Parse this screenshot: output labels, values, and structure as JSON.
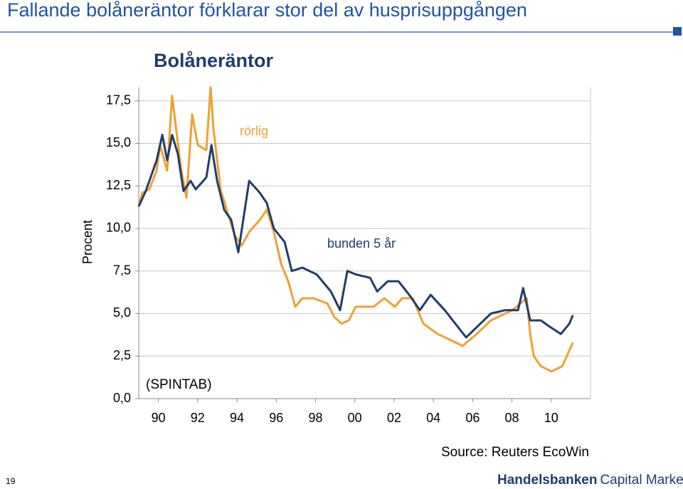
{
  "header": {
    "title": "Fallande bolåneräntor förklarar stor del av husprisuppgången"
  },
  "chart_data": {
    "type": "line",
    "title": "Bolåneräntor",
    "y_label": "Procent",
    "annotations": [
      "(SPINTAB)"
    ],
    "xlim": [
      1989,
      2012
    ],
    "xticks": [
      {
        "value": 1990,
        "label": "90"
      },
      {
        "value": 1992,
        "label": "92"
      },
      {
        "value": 1994,
        "label": "94"
      },
      {
        "value": 1996,
        "label": "96"
      },
      {
        "value": 1998,
        "label": "98"
      },
      {
        "value": 2000,
        "label": "00"
      },
      {
        "value": 2002,
        "label": "02"
      },
      {
        "value": 2004,
        "label": "04"
      },
      {
        "value": 2006,
        "label": "06"
      },
      {
        "value": 2008,
        "label": "08"
      },
      {
        "value": 2010,
        "label": "10"
      }
    ],
    "ylim": [
      0,
      18.3
    ],
    "yticks": [
      {
        "value": 0,
        "label": "0,0"
      },
      {
        "value": 2.5,
        "label": "2,5"
      },
      {
        "value": 5,
        "label": "5,0"
      },
      {
        "value": 7.5,
        "label": "7,5"
      },
      {
        "value": 10,
        "label": "10,0"
      },
      {
        "value": 12.5,
        "label": "12,5"
      },
      {
        "value": 15,
        "label": "15,0"
      },
      {
        "value": 17.5,
        "label": "17,5"
      }
    ],
    "grid": true,
    "series": [
      {
        "name": "rörlig",
        "color": "#f0a030",
        "x": [
          1989.0,
          1989.18,
          1989.54,
          1989.91,
          1990.09,
          1990.45,
          1990.7,
          1990.92,
          1991.17,
          1991.43,
          1991.72,
          1992.01,
          1992.44,
          1992.66,
          1992.8,
          1993.17,
          1993.53,
          1993.89,
          1994.25,
          1994.62,
          1995.16,
          1995.52,
          1995.88,
          1996.25,
          1996.61,
          1996.97,
          1997.33,
          1997.88,
          1998.6,
          1998.96,
          1999.33,
          1999.69,
          2000.05,
          2000.96,
          2001.5,
          2002.04,
          2002.41,
          2002.95,
          2003.49,
          2004.22,
          2005.49,
          2006.21,
          2006.93,
          2008.02,
          2008.75,
          2008.93,
          2009.11,
          2009.47,
          2010.01,
          2010.56,
          2011.1
        ],
        "values": [
          11.3,
          12.1,
          12.3,
          13.4,
          14.9,
          13.4,
          17.8,
          15.7,
          13.4,
          11.8,
          16.7,
          14.9,
          14.6,
          18.3,
          15.9,
          12.3,
          10.9,
          9.6,
          9.0,
          9.8,
          10.5,
          11.1,
          9.8,
          7.9,
          6.9,
          5.4,
          5.9,
          5.9,
          5.6,
          4.8,
          4.4,
          4.6,
          5.4,
          5.4,
          5.9,
          5.4,
          5.9,
          5.9,
          4.4,
          3.8,
          3.1,
          3.8,
          4.6,
          5.2,
          5.9,
          3.8,
          2.5,
          1.9,
          1.6,
          1.9,
          3.3
        ]
      },
      {
        "name": "bunden 5 år",
        "color": "#1f3d6b",
        "x": [
          1989.0,
          1989.36,
          1989.91,
          1990.2,
          1990.45,
          1990.7,
          1990.99,
          1991.28,
          1991.64,
          1991.9,
          1992.44,
          1992.7,
          1992.99,
          1993.35,
          1993.71,
          1994.07,
          1994.62,
          1995.16,
          1995.52,
          1995.88,
          1996.43,
          1996.79,
          1997.33,
          1998.06,
          1998.78,
          1999.25,
          1999.62,
          2000.05,
          2000.78,
          2001.14,
          2001.68,
          2002.22,
          2002.77,
          2003.31,
          2003.86,
          2004.58,
          2005.12,
          2005.67,
          2006.39,
          2006.93,
          2007.66,
          2008.31,
          2008.57,
          2008.93,
          2009.47,
          2009.83,
          2010.49,
          2010.92,
          2011.1
        ],
        "values": [
          11.3,
          12.2,
          14.0,
          15.5,
          14.0,
          15.5,
          14.4,
          12.2,
          12.8,
          12.3,
          13.0,
          14.9,
          12.8,
          11.1,
          10.5,
          8.6,
          12.8,
          12.1,
          11.5,
          10.0,
          9.2,
          7.5,
          7.7,
          7.3,
          6.3,
          5.2,
          7.5,
          7.3,
          7.1,
          6.3,
          6.9,
          6.9,
          6.1,
          5.2,
          6.1,
          5.2,
          4.4,
          3.6,
          4.4,
          5.0,
          5.2,
          5.2,
          6.5,
          4.6,
          4.6,
          4.3,
          3.8,
          4.4,
          4.9
        ]
      }
    ]
  },
  "footer": {
    "source": "Source: Reuters EcoWin",
    "page": "19",
    "logo_bold": "Handelsbanken",
    "logo_rest": "Capital Markets"
  }
}
